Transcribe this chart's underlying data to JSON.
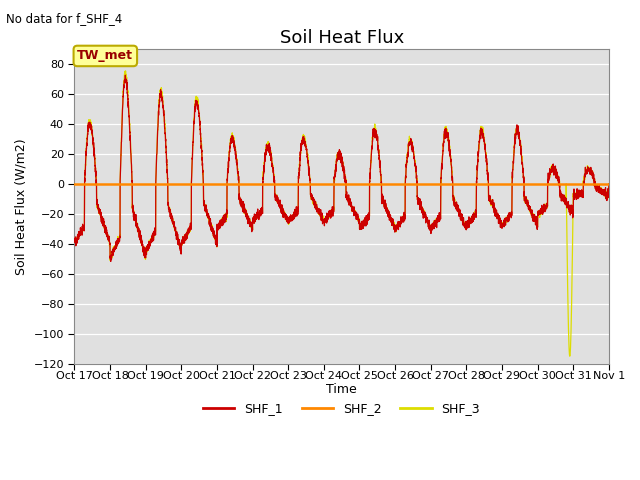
{
  "title": "Soil Heat Flux",
  "subtitle": "No data for f_SHF_4",
  "ylabel": "Soil Heat Flux (W/m2)",
  "xlabel": "Time",
  "ylim": [
    -120,
    90
  ],
  "yticks": [
    -120,
    -100,
    -80,
    -60,
    -40,
    -20,
    0,
    20,
    40,
    60,
    80
  ],
  "xtick_labels": [
    "Oct 17",
    "Oct 18",
    "Oct 19",
    "Oct 20",
    "Oct 21",
    "Oct 22",
    "Oct 23",
    "Oct 24",
    "Oct 25",
    "Oct 26",
    "Oct 27",
    "Oct 28",
    "Oct 29",
    "Oct 30",
    "Oct 31",
    "Nov 1"
  ],
  "legend_labels": [
    "SHF_1",
    "SHF_2",
    "SHF_3"
  ],
  "shf1_color": "#cc0000",
  "shf2_color": "#ff8800",
  "shf3_color": "#dddd00",
  "hline_color": "#ff8800",
  "hline_y": 0,
  "box_label": "TW_met",
  "box_facecolor": "#ffff99",
  "box_edgecolor": "#bbaa00",
  "background_color": "#e0e0e0",
  "title_fontsize": 13,
  "axis_label_fontsize": 9,
  "tick_fontsize": 8,
  "n_days": 15,
  "pts_per_day": 288
}
